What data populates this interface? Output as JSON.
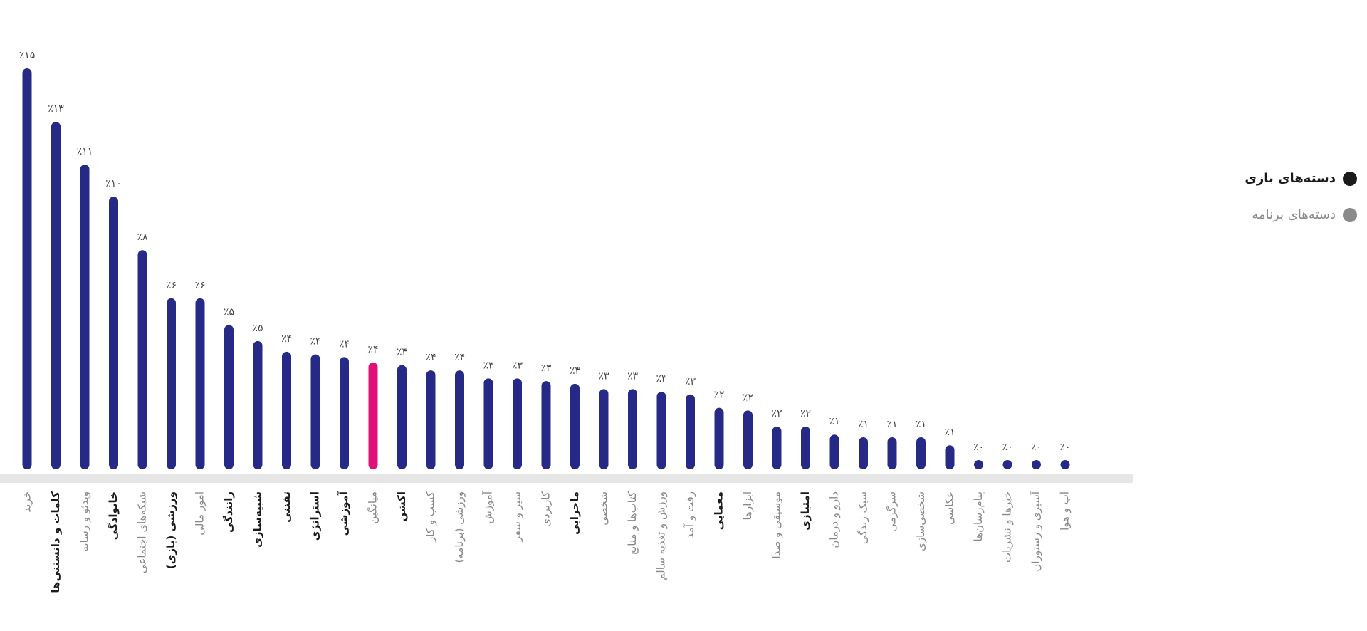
{
  "chart_data": {
    "type": "bar",
    "categories": [
      "خرید",
      "کلمات و دانستنی‌ها",
      "ویدئو و رسانه",
      "خانوادگی",
      "شبکه‌های اجتماعی",
      "ورزشی (بازی)",
      "امور مالی",
      "رانندگی",
      "شبیه‌سازی",
      "تفننی",
      "استراتژی",
      "آموزشی",
      "میانگین",
      "اکشن",
      "کسب و کار",
      "ورزشی (برنامه)",
      "آموزش",
      "سیر و سفر",
      "کاربردی",
      "ماجرایی",
      "شخصی",
      "کتاب‌ها و منابع",
      "ورزش و تغذیه سالم",
      "رفت و آمد",
      "معمایی",
      "ابزارها",
      "موسیقی و صدا",
      "امتیازی",
      "دارو و درمان",
      "سبک زندگی",
      "سرگرمی",
      "شخصی‌سازی",
      "عکاسی",
      "پیام‌رسان‌ها",
      "خبرها و نشریات",
      "آشپزی و رستوران",
      "آب و هوا"
    ],
    "values": [
      15,
      13,
      11.4,
      10.2,
      8.2,
      6.4,
      6.4,
      5.4,
      4.8,
      4.4,
      4.3,
      4.2,
      4.0,
      3.9,
      3.7,
      3.7,
      3.4,
      3.4,
      3.3,
      3.2,
      3.0,
      3.0,
      2.9,
      2.8,
      2.3,
      2.2,
      1.6,
      1.6,
      1.3,
      1.2,
      1.2,
      1.2,
      0.9,
      0.3,
      0.3,
      0.2,
      0.2
    ],
    "value_labels": [
      "٪۱۵",
      "٪۱۳",
      "٪۱۱",
      "٪۱۰",
      "٪۸",
      "٪۶",
      "٪۶",
      "٪۵",
      "٪۵",
      "٪۴",
      "٪۴",
      "٪۴",
      "٪۴",
      "٪۴",
      "٪۴",
      "٪۴",
      "٪۳",
      "٪۳",
      "٪۳",
      "٪۳",
      "٪۳",
      "٪۳",
      "٪۳",
      "٪۳",
      "٪۲",
      "٪۲",
      "٪۲",
      "٪۲",
      "٪۱",
      "٪۱",
      "٪۱",
      "٪۱",
      "٪۱",
      "٪۰",
      "٪۰",
      "٪۰",
      "٪۰"
    ],
    "colors": [
      "#262a86",
      "#262a86",
      "#262a86",
      "#262a86",
      "#262a86",
      "#262a86",
      "#262a86",
      "#262a86",
      "#262a86",
      "#262a86",
      "#262a86",
      "#262a86",
      "#e0127a",
      "#262a86",
      "#262a86",
      "#262a86",
      "#262a86",
      "#262a86",
      "#262a86",
      "#262a86",
      "#262a86",
      "#262a86",
      "#262a86",
      "#262a86",
      "#262a86",
      "#262a86",
      "#262a86",
      "#262a86",
      "#262a86",
      "#262a86",
      "#262a86",
      "#262a86",
      "#262a86",
      "#262a86",
      "#262a86",
      "#262a86",
      "#262a86"
    ],
    "label_colors": [
      "#888888",
      "#1a1a1a",
      "#888888",
      "#1a1a1a",
      "#888888",
      "#1a1a1a",
      "#888888",
      "#1a1a1a",
      "#1a1a1a",
      "#1a1a1a",
      "#1a1a1a",
      "#1a1a1a",
      "#888888",
      "#1a1a1a",
      "#888888",
      "#888888",
      "#888888",
      "#888888",
      "#888888",
      "#1a1a1a",
      "#888888",
      "#888888",
      "#888888",
      "#888888",
      "#1a1a1a",
      "#888888",
      "#888888",
      "#1a1a1a",
      "#888888",
      "#888888",
      "#888888",
      "#888888",
      "#888888",
      "#888888",
      "#888888",
      "#888888",
      "#888888"
    ],
    "ylim": [
      0,
      15
    ],
    "legend": [
      {
        "name": "دسته‌های بازی",
        "color": "#1a1a1a"
      },
      {
        "name": "دسته‌های برنامه",
        "color": "#8a8a8a"
      }
    ],
    "legend_position": "right"
  }
}
